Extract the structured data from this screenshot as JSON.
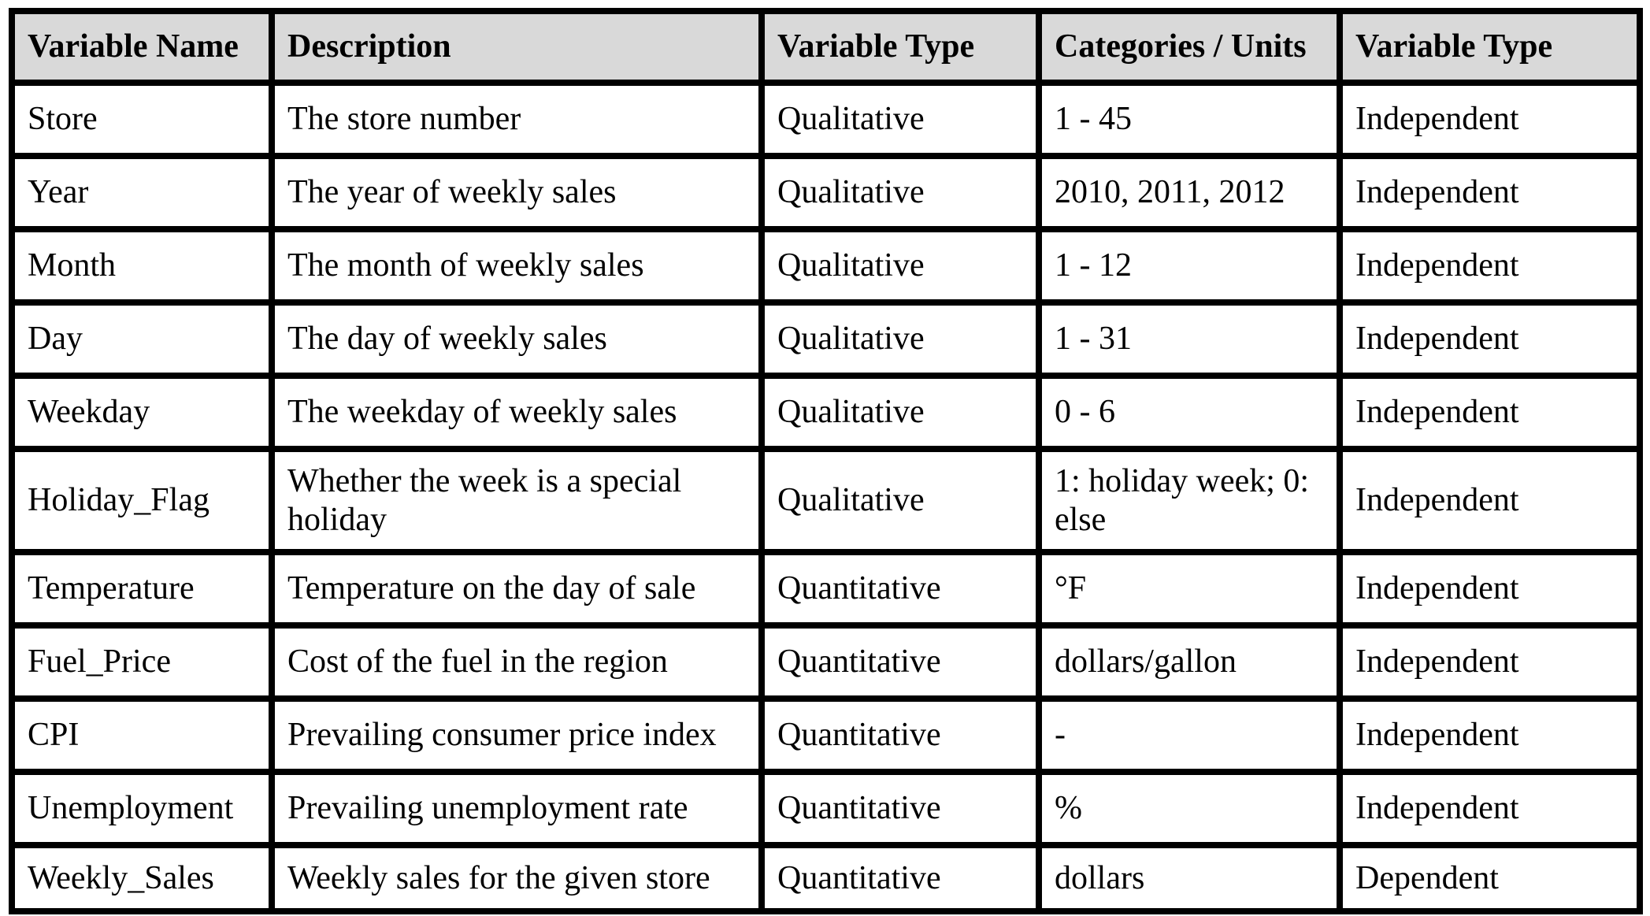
{
  "table": {
    "headers": {
      "variable_name": "Variable Name",
      "description": "Description",
      "variable_type": "Variable Type",
      "categories_units": "Categories / Units",
      "variable_type_2": "Variable Type"
    },
    "rows": [
      {
        "name": "Store",
        "description": "The store number",
        "var_type": "Qualitative",
        "categories_units": "1 - 45",
        "role": "Independent"
      },
      {
        "name": "Year",
        "description": "The year of weekly sales",
        "var_type": "Qualitative",
        "categories_units": "2010, 2011, 2012",
        "role": "Independent"
      },
      {
        "name": "Month",
        "description": "The month of weekly sales",
        "var_type": "Qualitative",
        "categories_units": "1 - 12",
        "role": "Independent"
      },
      {
        "name": "Day",
        "description": "The day of weekly sales",
        "var_type": "Qualitative",
        "categories_units": "1 - 31",
        "role": "Independent"
      },
      {
        "name": "Weekday",
        "description": "The weekday of weekly sales",
        "var_type": "Qualitative",
        "categories_units": "0 - 6",
        "role": "Independent"
      },
      {
        "name": "Holiday_Flag",
        "description": "Whether the week is a special holiday",
        "var_type": "Qualitative",
        "categories_units": "1: holiday week; 0: else",
        "role": "Independent"
      },
      {
        "name": "Temperature",
        "description": "Temperature on the day of sale",
        "var_type": "Quantitative",
        "categories_units": "°F",
        "role": "Independent"
      },
      {
        "name": "Fuel_Price",
        "description": "Cost of the fuel in the region",
        "var_type": "Quantitative",
        "categories_units": "dollars/gallon",
        "role": "Independent"
      },
      {
        "name": "CPI",
        "description": "Prevailing consumer price index",
        "var_type": "Quantitative",
        "categories_units": "-",
        "role": "Independent"
      },
      {
        "name": "Unemployment",
        "description": "Prevailing unemployment rate",
        "var_type": "Quantitative",
        "categories_units": "%",
        "role": "Independent"
      },
      {
        "name": "Weekly_Sales",
        "description": "Weekly sales for the given store",
        "var_type": "Quantitative",
        "categories_units": "dollars",
        "role": "Dependent"
      }
    ],
    "colors": {
      "header_bg": "#d9d9d9",
      "border": "#000000",
      "text": "#000000",
      "row_bg": "#ffffff"
    }
  }
}
